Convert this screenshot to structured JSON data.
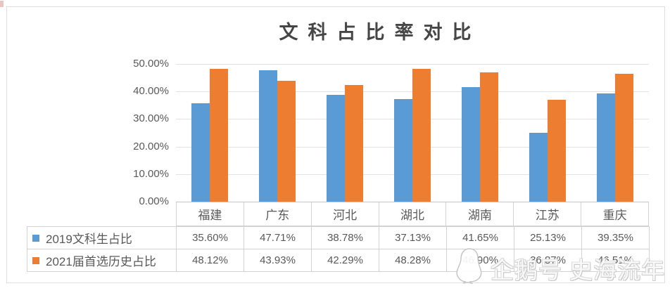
{
  "chart_data": {
    "type": "bar",
    "title": "文科占比率对比",
    "categories": [
      "福建",
      "广东",
      "河北",
      "湖北",
      "湖南",
      "江苏",
      "重庆"
    ],
    "series": [
      {
        "name": "2019文科生占比",
        "color": "#5B9BD5",
        "values": [
          35.6,
          47.71,
          38.78,
          37.13,
          41.65,
          25.13,
          39.35
        ]
      },
      {
        "name": "2021届首选历史占比",
        "color": "#ED7D31",
        "values": [
          48.12,
          43.93,
          42.29,
          48.28,
          46.9,
          36.87,
          46.51
        ]
      }
    ],
    "ylim": [
      0,
      50
    ],
    "yticks": [
      "50.00%",
      "40.00%",
      "30.00%",
      "20.00%",
      "10.00%",
      "0.00%"
    ],
    "value_suffix": "%",
    "grid": true,
    "legend_position": "data-table-left",
    "gridline_color": "#e2e2e2"
  },
  "watermark": {
    "text": "企鹅号 史海流年",
    "icon": "penguin"
  }
}
